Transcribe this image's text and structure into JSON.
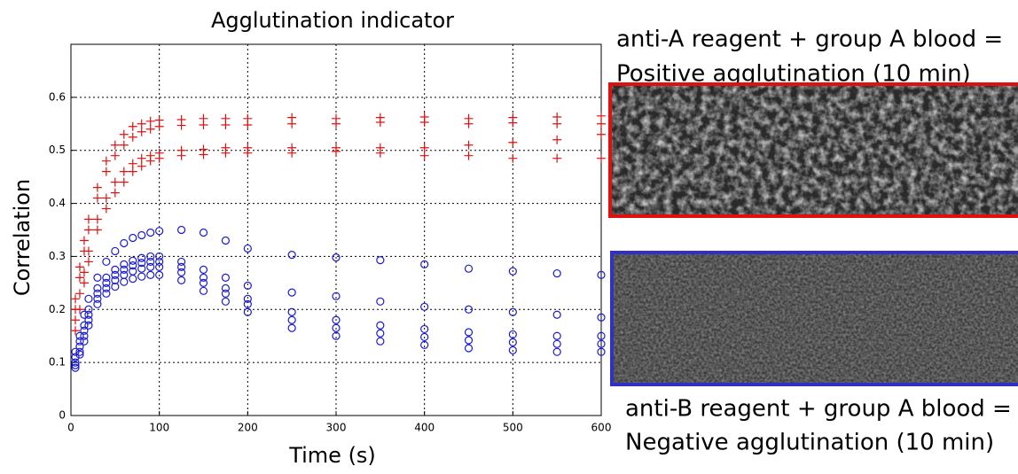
{
  "chart_data": {
    "type": "scatter",
    "title": "Agglutination indicator",
    "x_label": "Time (s)",
    "y_label": "Correlation",
    "x": [
      5,
      10,
      15,
      20,
      30,
      40,
      50,
      60,
      70,
      80,
      90,
      100,
      125,
      150,
      175,
      200,
      250,
      300,
      350,
      400,
      450,
      500,
      550,
      600
    ],
    "series": [
      {
        "color": "#e01010",
        "marker": "+",
        "values": [
          0.22,
          0.28,
          0.33,
          0.37,
          0.43,
          0.48,
          0.51,
          0.53,
          0.545,
          0.55,
          0.555,
          0.557,
          0.558,
          0.56,
          0.56,
          0.56,
          0.562,
          0.56,
          0.562,
          0.563,
          0.56,
          0.562,
          0.563,
          0.565
        ]
      },
      {
        "color": "#e01010",
        "marker": "+",
        "values": [
          0.2,
          0.26,
          0.31,
          0.35,
          0.41,
          0.46,
          0.49,
          0.51,
          0.525,
          0.535,
          0.54,
          0.545,
          0.547,
          0.548,
          0.548,
          0.548,
          0.55,
          0.55,
          0.553,
          0.553,
          0.55,
          0.552,
          0.55,
          0.55
        ]
      },
      {
        "color": "#e01010",
        "marker": "+",
        "values": [
          0.18,
          0.23,
          0.27,
          0.31,
          0.37,
          0.41,
          0.44,
          0.46,
          0.475,
          0.485,
          0.49,
          0.495,
          0.5,
          0.502,
          0.505,
          0.505,
          0.505,
          0.505,
          0.505,
          0.505,
          0.51,
          0.515,
          0.52,
          0.53
        ]
      },
      {
        "color": "#e01010",
        "marker": "+",
        "values": [
          0.16,
          0.2,
          0.25,
          0.29,
          0.35,
          0.39,
          0.42,
          0.44,
          0.46,
          0.47,
          0.48,
          0.485,
          0.49,
          0.492,
          0.495,
          0.495,
          0.495,
          0.498,
          0.495,
          0.49,
          0.49,
          0.485,
          0.485,
          0.485
        ]
      },
      {
        "color": "#1a1ad0",
        "marker": "o",
        "values": [
          0.12,
          0.15,
          0.19,
          0.22,
          0.26,
          0.29,
          0.31,
          0.325,
          0.335,
          0.34,
          0.345,
          0.348,
          0.35,
          0.345,
          0.33,
          0.315,
          0.303,
          0.298,
          0.293,
          0.285,
          0.277,
          0.272,
          0.268,
          0.265
        ]
      },
      {
        "color": "#1a1ad0",
        "marker": "o",
        "values": [
          0.11,
          0.14,
          0.17,
          0.2,
          0.24,
          0.26,
          0.275,
          0.285,
          0.292,
          0.297,
          0.3,
          0.3,
          0.29,
          0.275,
          0.26,
          0.245,
          0.232,
          0.225,
          0.215,
          0.205,
          0.2,
          0.195,
          0.19,
          0.185
        ]
      },
      {
        "color": "#1a1ad0",
        "marker": "o",
        "values": [
          0.1,
          0.13,
          0.16,
          0.19,
          0.23,
          0.25,
          0.265,
          0.275,
          0.283,
          0.288,
          0.29,
          0.29,
          0.28,
          0.26,
          0.24,
          0.22,
          0.195,
          0.18,
          0.17,
          0.163,
          0.157,
          0.153,
          0.15,
          0.15
        ]
      },
      {
        "color": "#1a1ad0",
        "marker": "o",
        "values": [
          0.095,
          0.12,
          0.15,
          0.18,
          0.22,
          0.24,
          0.255,
          0.265,
          0.272,
          0.277,
          0.28,
          0.28,
          0.27,
          0.25,
          0.23,
          0.21,
          0.18,
          0.165,
          0.155,
          0.148,
          0.142,
          0.138,
          0.135,
          0.135
        ]
      },
      {
        "color": "#1a1ad0",
        "marker": "o",
        "values": [
          0.09,
          0.115,
          0.14,
          0.17,
          0.21,
          0.23,
          0.243,
          0.252,
          0.258,
          0.262,
          0.265,
          0.265,
          0.255,
          0.235,
          0.215,
          0.195,
          0.165,
          0.15,
          0.14,
          0.133,
          0.127,
          0.123,
          0.12,
          0.12
        ]
      }
    ],
    "xlim": [
      0,
      600
    ],
    "xticks": [
      0,
      100,
      200,
      300,
      400,
      500,
      600
    ],
    "ylim": [
      0,
      0.7
    ],
    "yticks": [
      0,
      0.1,
      0.2,
      0.3,
      0.4,
      0.5,
      0.6
    ],
    "grid": true
  },
  "panels": [
    {
      "caption": [
        "anti-A reagent + group A blood =",
        "Positive agglutination (10 min)"
      ],
      "border_color": "#e01010"
    },
    {
      "caption": [
        "anti-B reagent + group A blood =",
        "Negative agglutination (10 min)"
      ],
      "border_color": "#3030c8"
    }
  ]
}
